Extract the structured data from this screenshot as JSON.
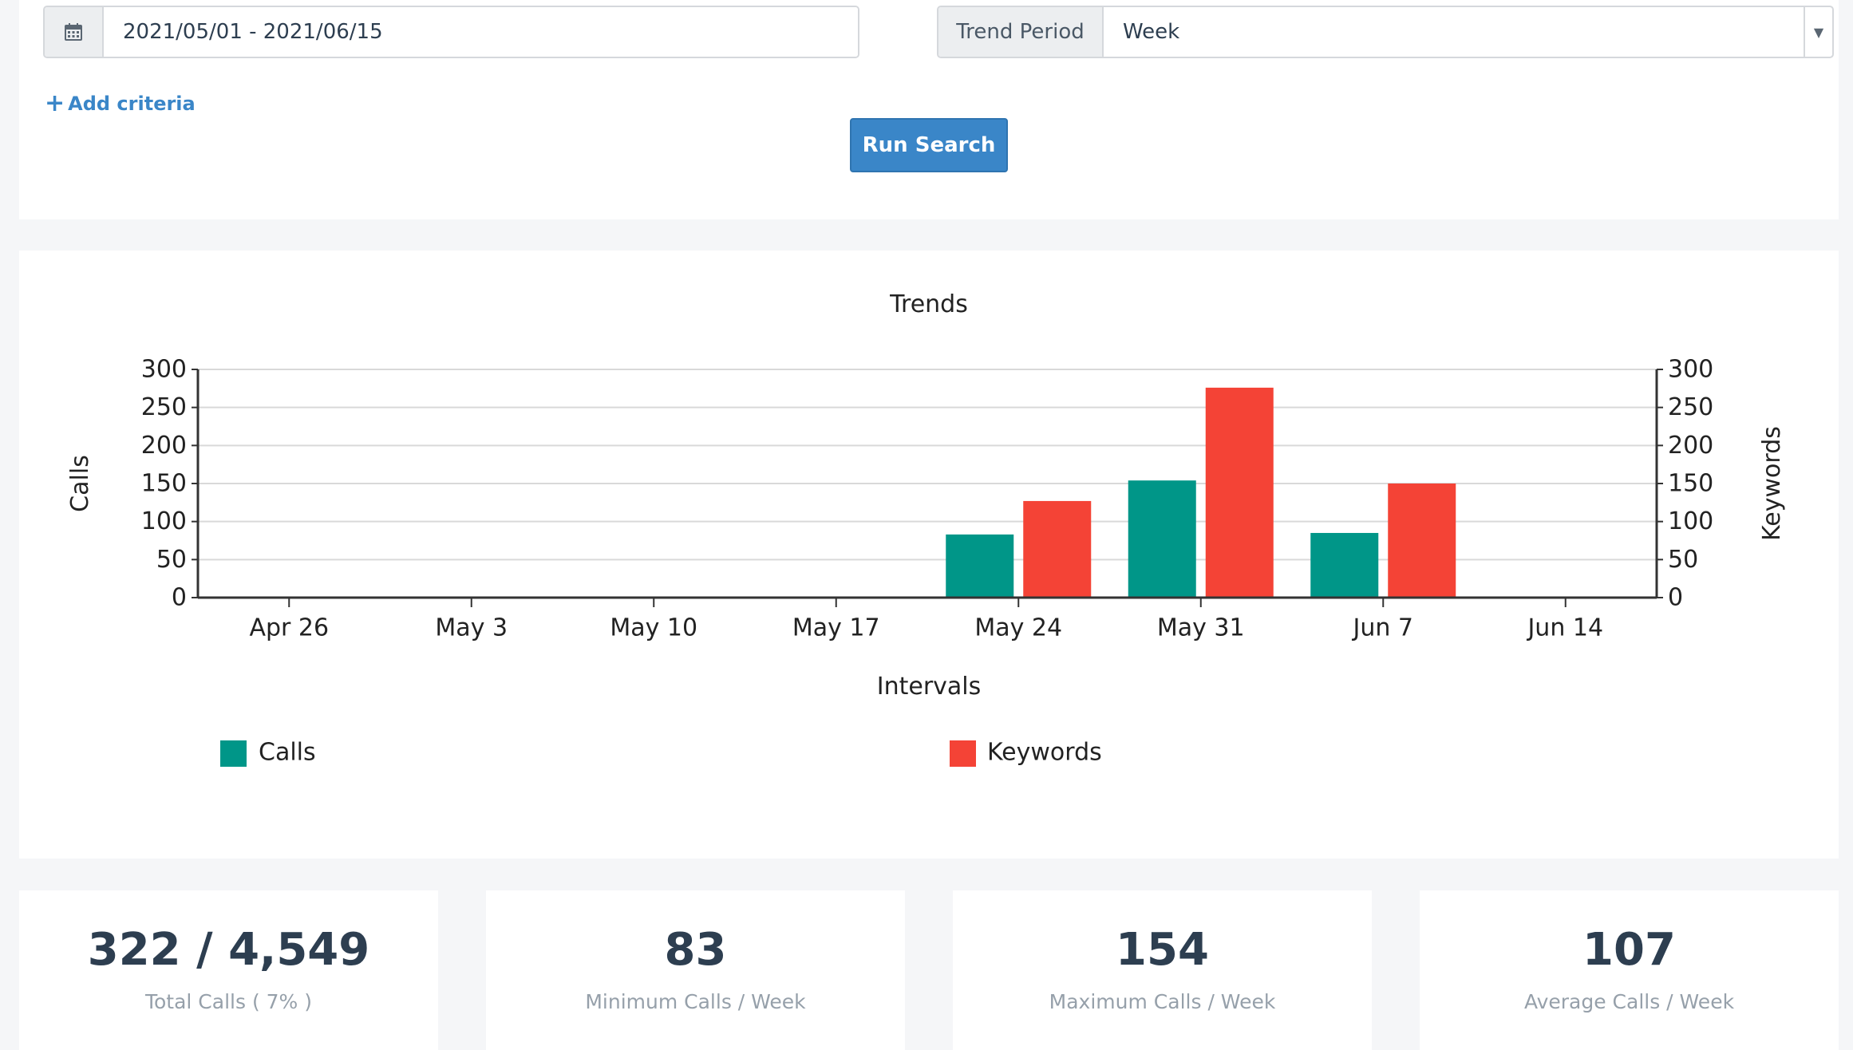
{
  "search": {
    "date_range": "2021/05/01 - 2021/06/15",
    "trend_period_label": "Trend Period",
    "trend_period_value": "Week",
    "add_criteria_label": "Add criteria",
    "run_search_label": "Run Search"
  },
  "chart_data": {
    "type": "bar",
    "title": "Trends",
    "xlabel": "Intervals",
    "ylabel_left": "Calls",
    "ylabel_right": "Keywords",
    "categories": [
      "Apr 26",
      "May 3",
      "May 10",
      "May 17",
      "May 24",
      "May 31",
      "Jun 7",
      "Jun 14"
    ],
    "yticks": [
      "0",
      "50",
      "100",
      "150",
      "200",
      "250",
      "300"
    ],
    "ylim": [
      0,
      300
    ],
    "grid": true,
    "legend_position": "bottom",
    "series": [
      {
        "name": "Calls",
        "axis": "left",
        "color": "#009688",
        "values": [
          0,
          0,
          0,
          0,
          83,
          154,
          85,
          0
        ]
      },
      {
        "name": "Keywords",
        "axis": "right",
        "color": "#f44336",
        "values": [
          0,
          0,
          0,
          0,
          127,
          276,
          150,
          0
        ]
      }
    ]
  },
  "stats": [
    {
      "value": "322 / 4,549",
      "label": "Total Calls ( 7% )"
    },
    {
      "value": "83",
      "label": "Minimum Calls / Week"
    },
    {
      "value": "154",
      "label": "Maximum Calls / Week"
    },
    {
      "value": "107",
      "label": "Average Calls / Week"
    }
  ]
}
